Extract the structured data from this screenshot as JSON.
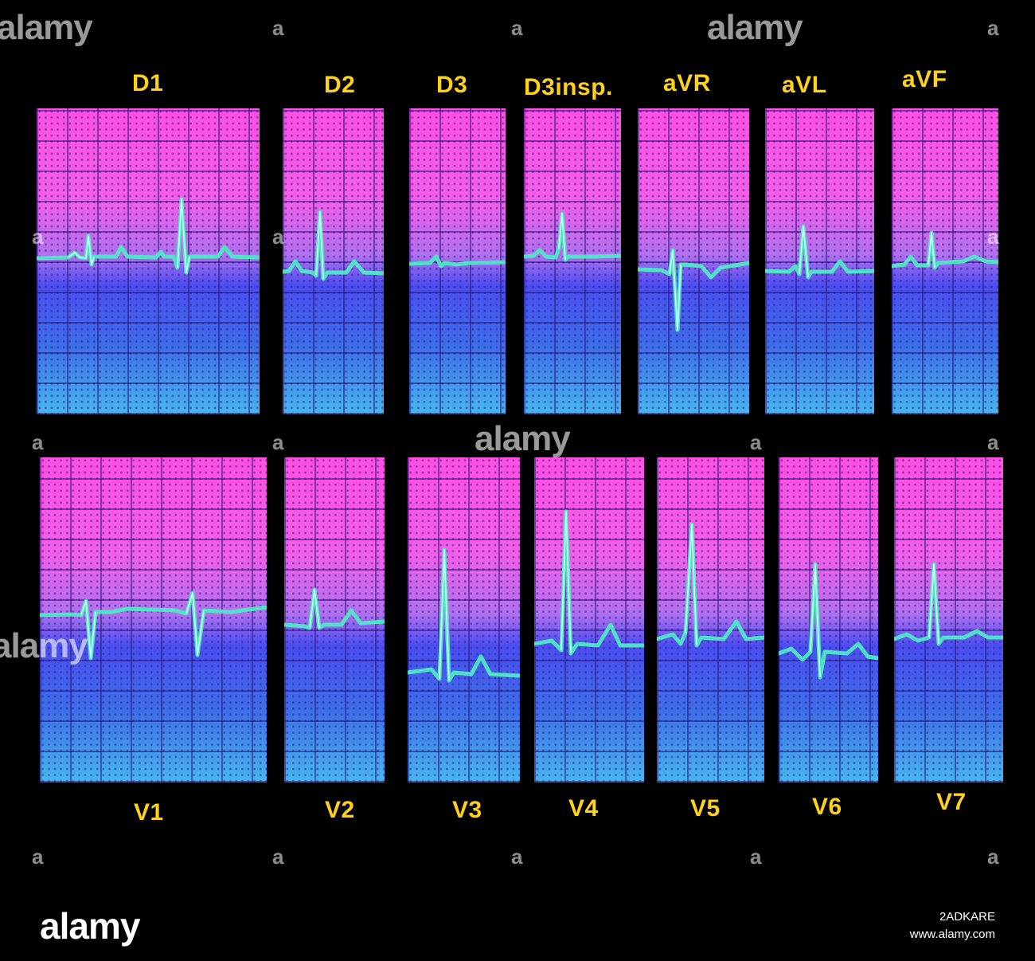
{
  "top_row": [
    {
      "label": "D1"
    },
    {
      "label": "D2"
    },
    {
      "label": "D3"
    },
    {
      "label": "D3insp."
    },
    {
      "label": "aVR"
    },
    {
      "label": "aVL"
    },
    {
      "label": "aVF"
    }
  ],
  "bottom_row": [
    {
      "label": "V1"
    },
    {
      "label": "V2"
    },
    {
      "label": "V3"
    },
    {
      "label": "V4"
    },
    {
      "label": "V5"
    },
    {
      "label": "V6"
    },
    {
      "label": "V7"
    }
  ],
  "watermark": {
    "brand": "alamy",
    "mark": "a"
  },
  "footer": {
    "brand": "alamy",
    "image_id": "2ADKARE",
    "site": "www.alamy.com"
  },
  "colors": {
    "label": "#ffd21a",
    "trace": "#4ee8c4",
    "grid_top": "#ff4fe3",
    "grid_bottom": "#47b7ee",
    "background": "#000000"
  }
}
